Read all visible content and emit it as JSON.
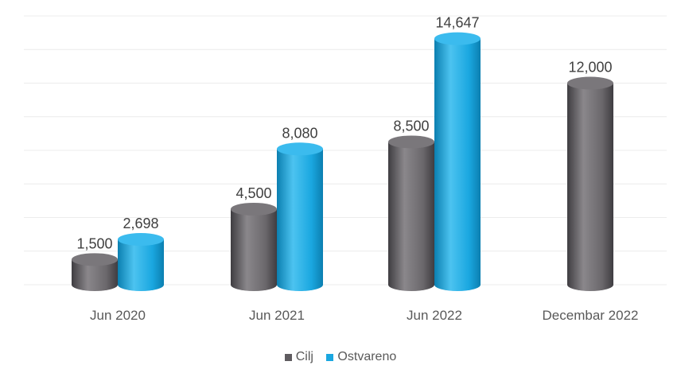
{
  "chart_data": {
    "type": "bar",
    "title": "",
    "xlabel": "",
    "ylabel": "",
    "categories": [
      "Jun 2020",
      "Jun 2021",
      "Jun 2022",
      "Decembar 2022"
    ],
    "series": [
      {
        "name": "Cilj",
        "color": "#5f5c60",
        "values": [
          1500,
          4500,
          8500,
          12000
        ]
      },
      {
        "name": "Ostvareno",
        "color": "#1aa7e0",
        "values": [
          2698,
          8080,
          14647,
          null
        ]
      }
    ],
    "value_labels": {
      "Cilj": [
        "1,500",
        "4,500",
        "8,500",
        "12,000"
      ],
      "Ostvareno": [
        "2,698",
        "8,080",
        "14,647",
        ""
      ]
    },
    "ylim": [
      0,
      16000
    ],
    "grid": true,
    "legend_position": "bottom",
    "bar_shape": "cylinder"
  }
}
